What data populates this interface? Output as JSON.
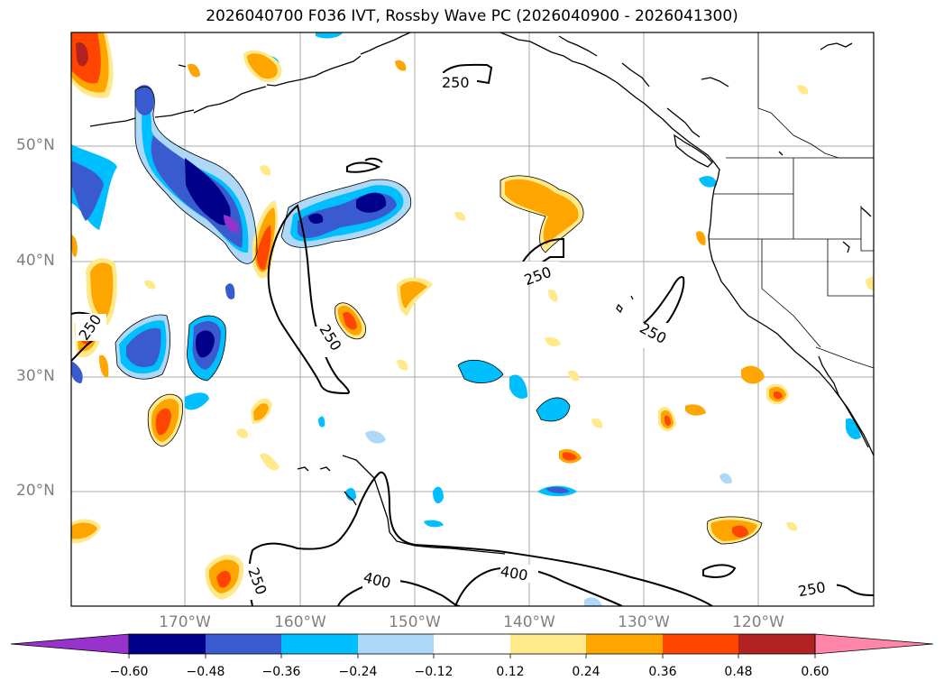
{
  "title": "2026040700 F036 IVT, Rossby Wave PC (2026040900 - 2026041300)",
  "lat_labels": [
    "50°N",
    "40°N",
    "30°N",
    "20°N"
  ],
  "lon_labels": [
    "170°W",
    "160°W",
    "150°W",
    "140°W",
    "130°W",
    "120°W"
  ],
  "contour_labels": [
    "250",
    "250",
    "250",
    "250",
    "250",
    "400",
    "400",
    "250",
    "250"
  ],
  "colorbar": {
    "ticks": [
      "−0.60",
      "−0.48",
      "−0.36",
      "−0.24",
      "−0.12",
      "0.12",
      "0.24",
      "0.36",
      "0.48",
      "0.60"
    ],
    "colors": [
      "#9932cc",
      "#00008b",
      "#3a5bcf",
      "#00bfff",
      "#add8f7",
      "#ffffff",
      "#ffe98a",
      "#ffa500",
      "#ff4500",
      "#b22222",
      "#ff85a9"
    ]
  },
  "colors": {
    "land_outline": "#000000",
    "grid": "#a8a8a8",
    "ivt_contour": "#000000"
  }
}
